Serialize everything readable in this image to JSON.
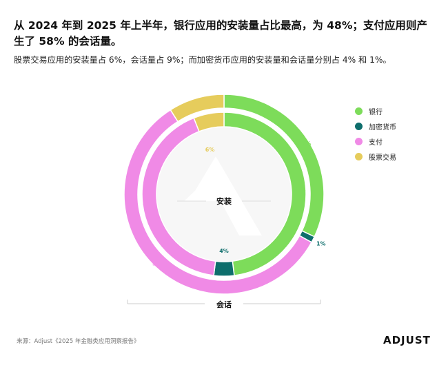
{
  "title": "从 2024 年到 2025 年上半年，银行应用的安装量占比最高，为 48%；支付应用则产生了 58% 的会话量。",
  "subtitle": "股票交易应用的安装量占 6%，会话量占 9%；而加密货币应用的安装量和会话量分别占 4% 和 1%。",
  "source": "来源：Adjust《2025 年金融类应用洞察报告》",
  "logo": "ADJUST",
  "chart_data": {
    "type": "pie",
    "categories": [
      "银行",
      "加密货币",
      "支付",
      "股票交易"
    ],
    "colors": [
      "#7ddc5a",
      "#0e6e6c",
      "#f08ae6",
      "#e6cc5c"
    ],
    "series": [
      {
        "name": "安装",
        "values": [
          48,
          4,
          42,
          6
        ],
        "labels": [
          "48%",
          "4%",
          "42%",
          "6%"
        ]
      },
      {
        "name": "会话",
        "values": [
          32,
          1,
          58,
          9
        ],
        "labels": [
          "32%",
          "1%",
          "58%",
          "9%"
        ]
      }
    ],
    "legend_position": "right"
  }
}
